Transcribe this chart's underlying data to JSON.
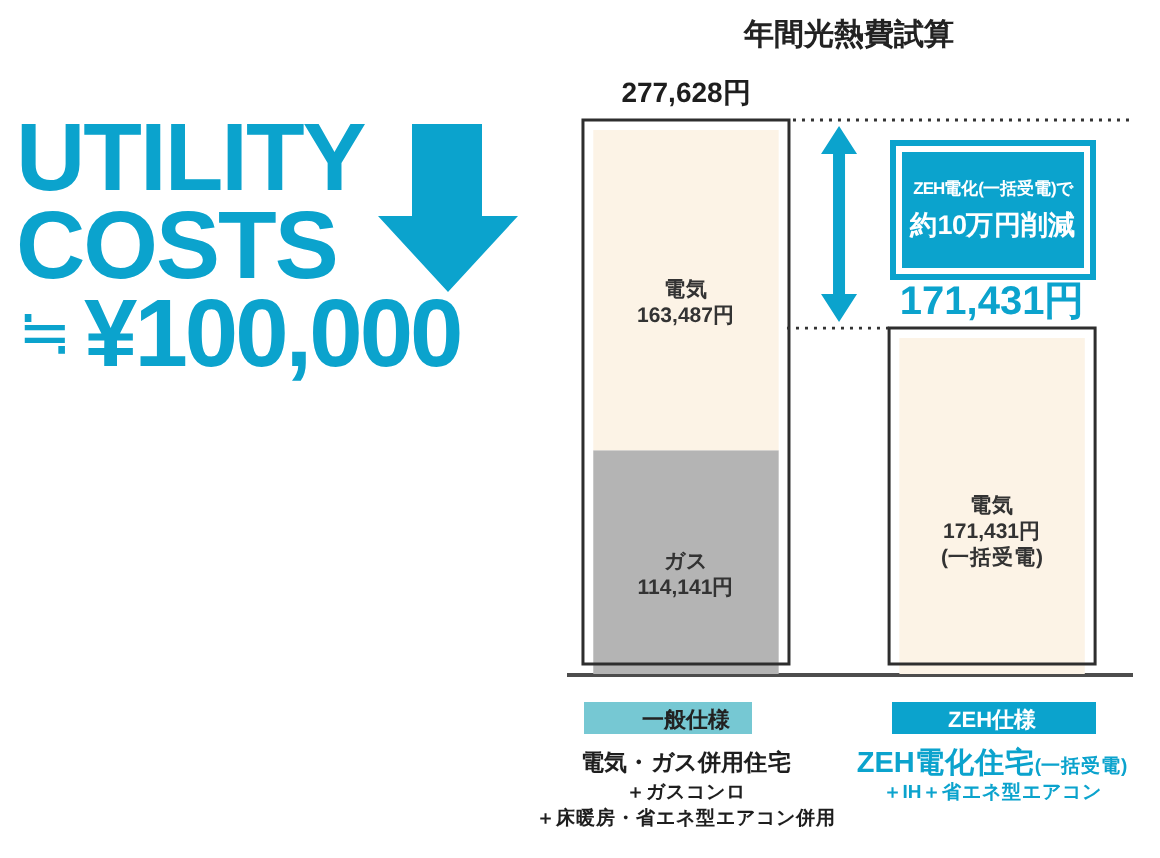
{
  "chart_data": {
    "type": "bar",
    "stacked": true,
    "title": "年間光熱費試算",
    "categories": [
      "一般仕様",
      "ZEH仕様"
    ],
    "series": [
      {
        "name": "ガス",
        "color": "#b4b4b4",
        "values": [
          114141,
          null
        ],
        "value_labels": [
          "114,141円",
          null
        ]
      },
      {
        "name": "電気",
        "color": "#fcf3e6",
        "values": [
          163487,
          171431
        ],
        "value_labels": [
          "163,487円",
          "171,431円\n(一括受電)"
        ]
      }
    ],
    "totals": [
      "277,628円",
      "171,431円"
    ],
    "tick_labels": "x",
    "annotations": [
      "UTILITY\nCOSTS",
      "≒",
      "¥100,000",
      "ZEH電化(一括受電)で",
      "約10万円削減",
      "電気・ガス併用住宅",
      "＋ガスコンロ",
      "＋床暖房・省エネ型エアコン併用",
      "ZEH電化住宅",
      "(一括受電)",
      "＋IH＋省エネ型エアコン"
    ]
  }
}
